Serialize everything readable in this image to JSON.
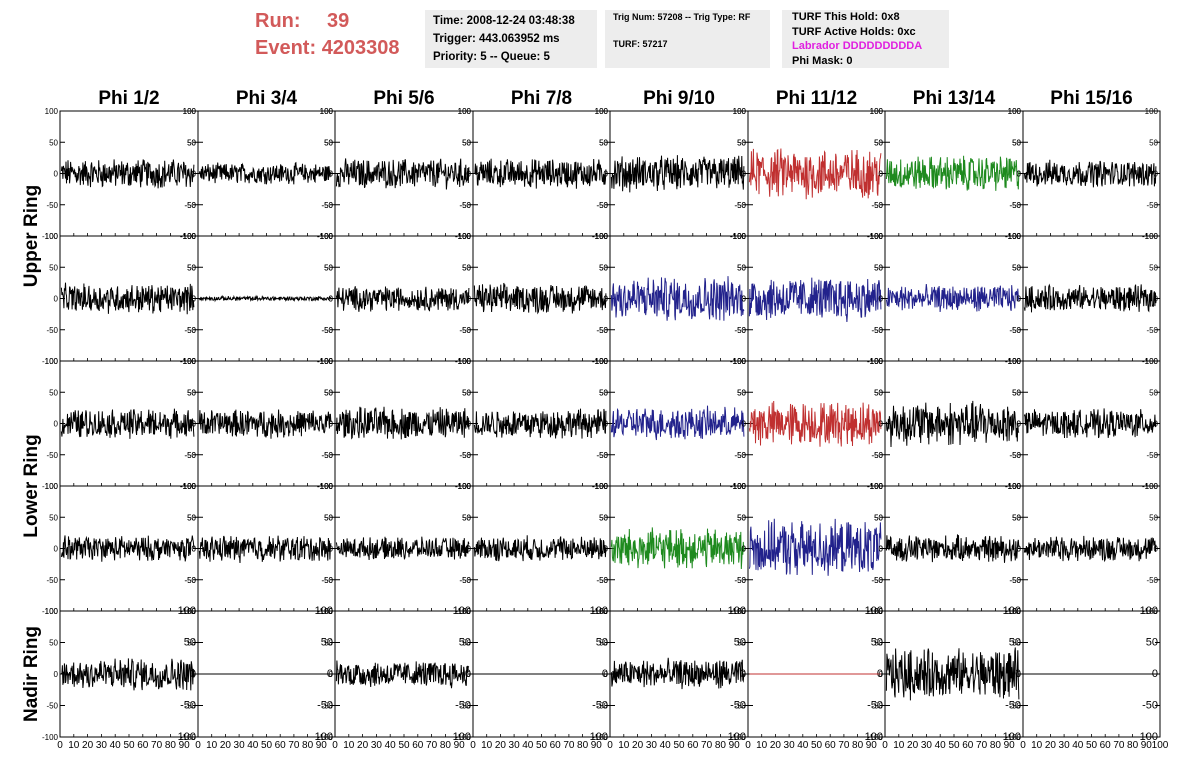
{
  "header": {
    "run_label": "Run:",
    "run_value": "39",
    "event_label": "Event:",
    "event_value": "4203308"
  },
  "info": {
    "time": "Time: 2008-12-24 03:48:38",
    "trigger": "Trigger: 443.063952 ms",
    "priority": "Priority: 5 -- Queue: 5",
    "trig_num": "Trig Num: 57208 -- Trig Type: RF",
    "turf": "TURF: 57217",
    "turf_this_hold": "TURF This Hold: 0x8",
    "turf_active_holds": "TURF Active Holds: 0xc",
    "labrador": "Labrador DDDDDDDDDA",
    "phi_mask": "Phi Mask: 0"
  },
  "colors": {
    "black": "#000000",
    "red": "#c03030",
    "green": "#1e8a1e",
    "blue": "#22228c",
    "run_text": "#d25a5a",
    "labrador_text": "#e020e0",
    "info_bg": "#ededed"
  },
  "chart_data": {
    "type": "line",
    "columns": [
      "Phi 1/2",
      "Phi 3/4",
      "Phi 5/6",
      "Phi 7/8",
      "Phi 9/10",
      "Phi 11/12",
      "Phi 13/14",
      "Phi 15/16"
    ],
    "row_labels": [
      "Upper Ring",
      "Lower Ring",
      "Nadir Ring"
    ],
    "ylim": [
      -100,
      100
    ],
    "yticks": [
      -100,
      -50,
      0,
      50,
      100
    ],
    "xlim": [
      0,
      100
    ],
    "xticks": [
      0,
      10,
      20,
      30,
      40,
      50,
      60,
      70,
      80,
      90,
      100
    ],
    "panel_color": [
      [
        "black",
        "black",
        "black",
        "black",
        "black",
        "red",
        "green",
        "black"
      ],
      [
        "black",
        "black",
        "black",
        "black",
        "blue",
        "blue",
        "blue",
        "black"
      ],
      [
        "black",
        "black",
        "black",
        "black",
        "blue",
        "red",
        "black",
        "black"
      ],
      [
        "black",
        "black",
        "black",
        "black",
        "green",
        "blue",
        "black",
        "black"
      ],
      [
        "black",
        "black",
        "black",
        "black",
        "black",
        "red",
        "black",
        "black"
      ]
    ],
    "panel_amplitude": [
      [
        20,
        14,
        20,
        20,
        24,
        34,
        24,
        18
      ],
      [
        20,
        3,
        17,
        20,
        30,
        30,
        18,
        18
      ],
      [
        20,
        19,
        22,
        20,
        22,
        30,
        30,
        19
      ],
      [
        17,
        18,
        15,
        17,
        27,
        37,
        18,
        17
      ],
      [
        22,
        0,
        18,
        0,
        20,
        0,
        34,
        0
      ]
    ]
  }
}
